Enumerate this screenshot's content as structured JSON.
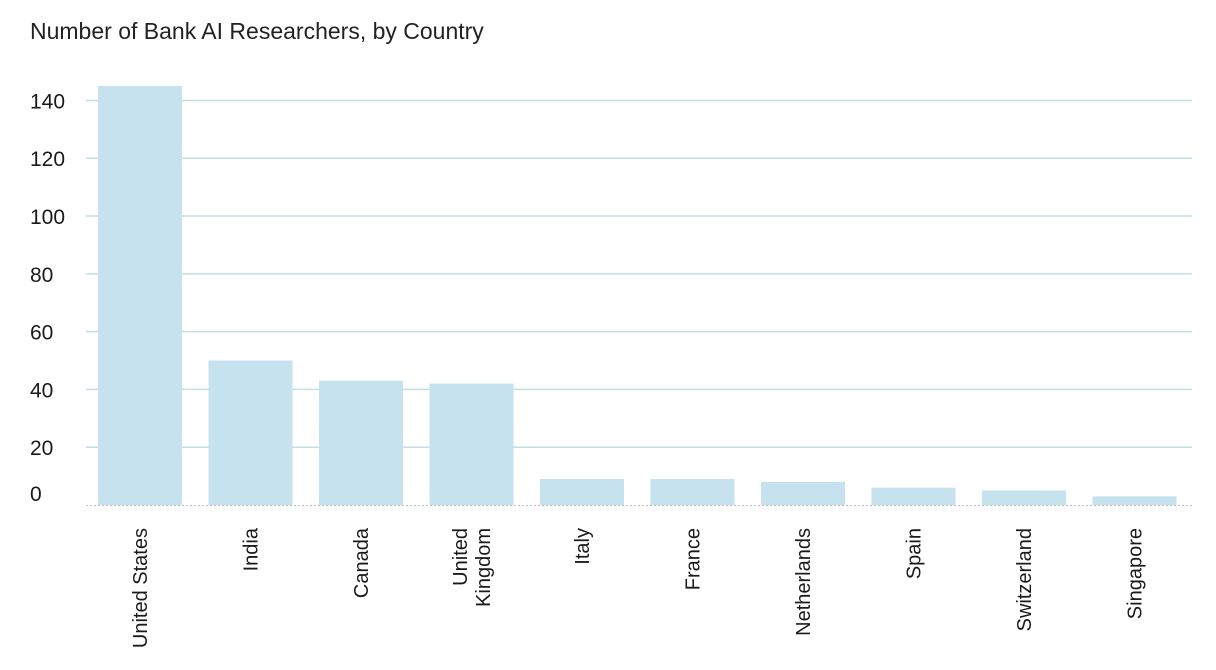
{
  "chart_data": {
    "type": "bar",
    "title": "Number of Bank AI Researchers, by Country",
    "xlabel": "",
    "ylabel": "",
    "categories": [
      "United States",
      "India",
      "Canada",
      "United Kingdom",
      "Italy",
      "France",
      "Netherlands",
      "Spain",
      "Switzerland",
      "Singapore"
    ],
    "values": [
      145,
      50,
      43,
      42,
      9,
      9,
      8,
      6,
      5,
      3
    ],
    "ylim": [
      0,
      145
    ],
    "yticks": [
      0,
      20,
      40,
      60,
      80,
      100,
      120,
      140
    ],
    "grid": true,
    "legend": "none",
    "colors": {
      "bar": "#c6e2ee",
      "grid": "#c5dde6",
      "baseline": "#bbbbbb",
      "text": "#1a1a1a"
    }
  }
}
